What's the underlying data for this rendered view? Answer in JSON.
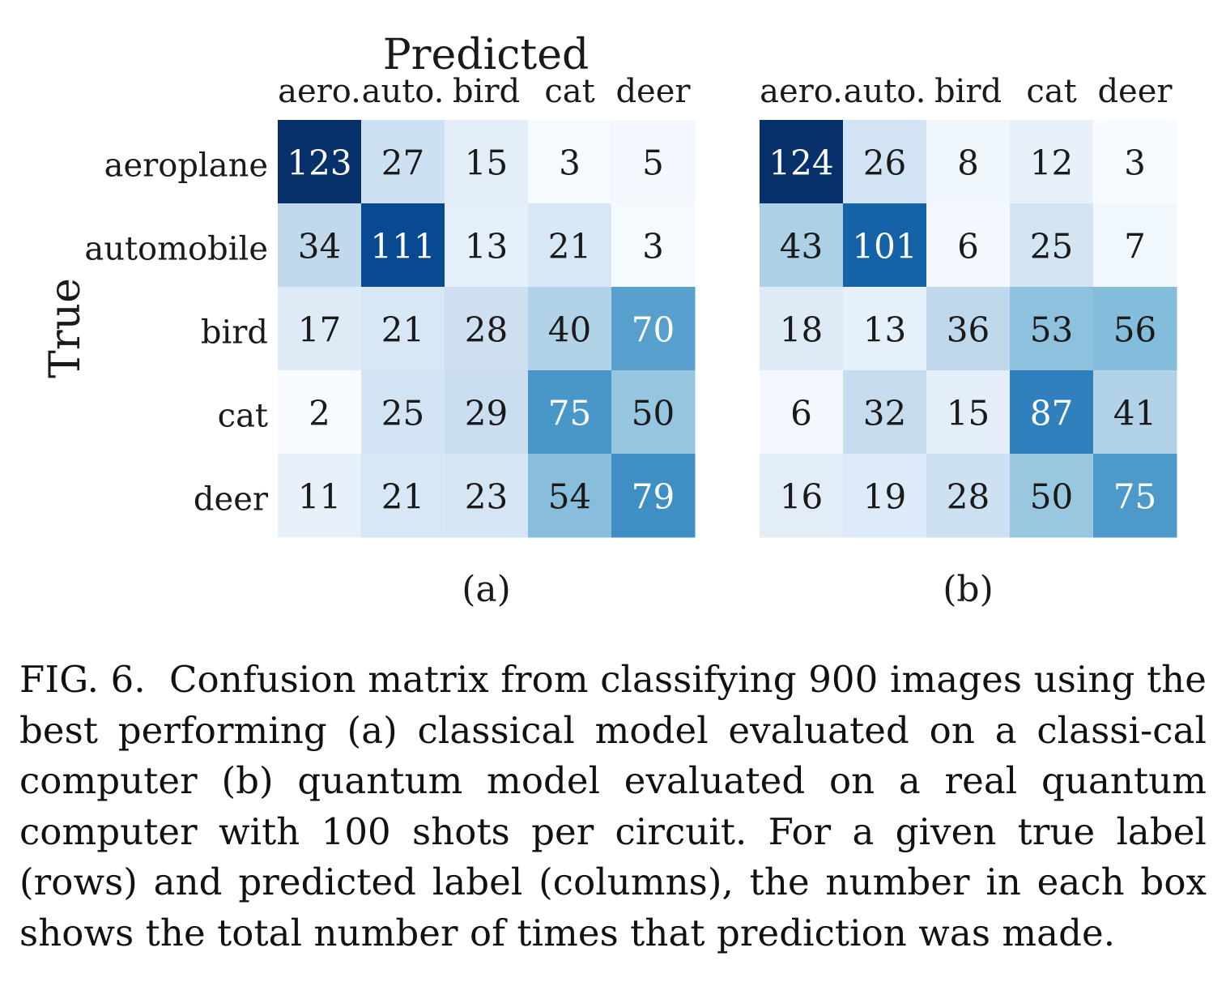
{
  "chart_data": {
    "type": "heatmap",
    "shared": {
      "title": "Predicted",
      "ylabel": "True",
      "row_labels": [
        "aeroplane",
        "automobile",
        "bird",
        "cat",
        "deer"
      ],
      "col_labels": [
        "aero.",
        "auto.",
        "bird",
        "cat",
        "deer"
      ],
      "colormap": "Blues",
      "grid": false
    },
    "panels": [
      {
        "label": "(a)",
        "values": [
          [
            123,
            27,
            15,
            3,
            5
          ],
          [
            34,
            111,
            13,
            21,
            3
          ],
          [
            17,
            21,
            28,
            40,
            70
          ],
          [
            2,
            25,
            29,
            75,
            50
          ],
          [
            11,
            21,
            23,
            54,
            79
          ]
        ]
      },
      {
        "label": "(b)",
        "values": [
          [
            124,
            26,
            8,
            12,
            3
          ],
          [
            43,
            101,
            6,
            25,
            7
          ],
          [
            18,
            13,
            36,
            53,
            56
          ],
          [
            6,
            32,
            15,
            87,
            41
          ],
          [
            16,
            19,
            28,
            50,
            75
          ]
        ]
      }
    ]
  },
  "caption": {
    "lead": "FIG. 6.",
    "text": "Confusion matrix from classifying 900 images using the best performing (a) classical model evaluated on a classi-cal computer (b) quantum model evaluated on a real quantum computer with 100 shots per circuit. For a given true label (rows) and predicted label (columns), the number in each box shows the total number of times that prediction was made."
  }
}
